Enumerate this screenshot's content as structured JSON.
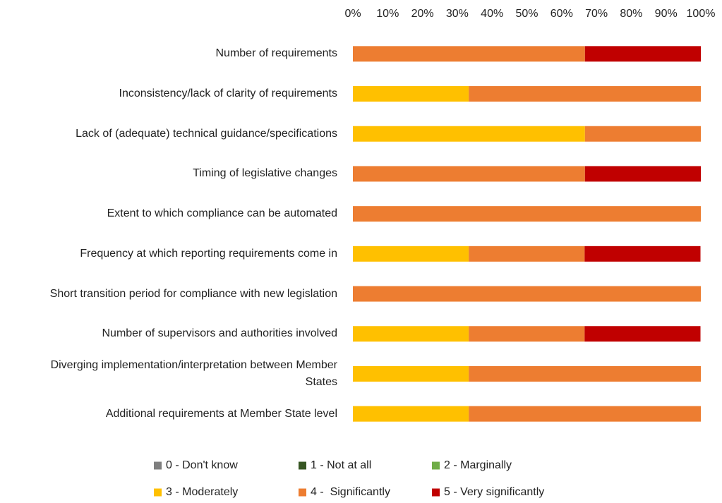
{
  "chart_data": {
    "type": "stacked_bar_horizontal",
    "categories": [
      "Number of requirements",
      "Inconsistency/lack of clarity of requirements",
      "Lack of (adequate) technical guidance/specifications",
      "Timing of legislative changes",
      "Extent to which compliance can be automated",
      "Frequency at which reporting requirements come in",
      "Short transition period for compliance with new legislation",
      "Number of supervisors and authorities involved",
      "Diverging implementation/interpretation between Member States",
      "Additional requirements at Member State level"
    ],
    "series": [
      {
        "name": "0 - Don't know",
        "color": "#7f7f7f",
        "values": [
          0,
          0,
          0,
          0,
          0,
          0,
          0,
          0,
          0,
          0
        ]
      },
      {
        "name": "1 - Not at all",
        "color": "#375623",
        "values": [
          0,
          0,
          0,
          0,
          0,
          0,
          0,
          0,
          0,
          0
        ]
      },
      {
        "name": "2 - Marginally",
        "color": "#70ad47",
        "values": [
          0,
          0,
          0,
          0,
          0,
          0,
          0,
          0,
          0,
          0
        ]
      },
      {
        "name": "3 - Moderately",
        "color": "#ffc000",
        "values": [
          0,
          33.3,
          66.7,
          0,
          0,
          33.3,
          0,
          33.3,
          33.3,
          33.3
        ]
      },
      {
        "name": "4 -  Significantly",
        "color": "#ed7d31",
        "values": [
          66.7,
          66.7,
          33.3,
          66.7,
          100,
          33.3,
          100,
          33.3,
          66.7,
          66.7
        ]
      },
      {
        "name": "5 - Very significantly",
        "color": "#c00000",
        "values": [
          33.3,
          0,
          0,
          33.3,
          0,
          33.3,
          0,
          33.3,
          0,
          0
        ]
      }
    ],
    "xlim": [
      0,
      100
    ],
    "xticks": [
      {
        "value": 0,
        "label": "0%"
      },
      {
        "value": 10,
        "label": "10%"
      },
      {
        "value": 20,
        "label": "20%"
      },
      {
        "value": 30,
        "label": "30%"
      },
      {
        "value": 40,
        "label": "40%"
      },
      {
        "value": 50,
        "label": "50%"
      },
      {
        "value": 60,
        "label": "60%"
      },
      {
        "value": 70,
        "label": "70%"
      },
      {
        "value": 80,
        "label": "80%"
      },
      {
        "value": 90,
        "label": "90%"
      },
      {
        "value": 100,
        "label": "100%"
      }
    ],
    "grid": false,
    "legend": "bottom"
  }
}
